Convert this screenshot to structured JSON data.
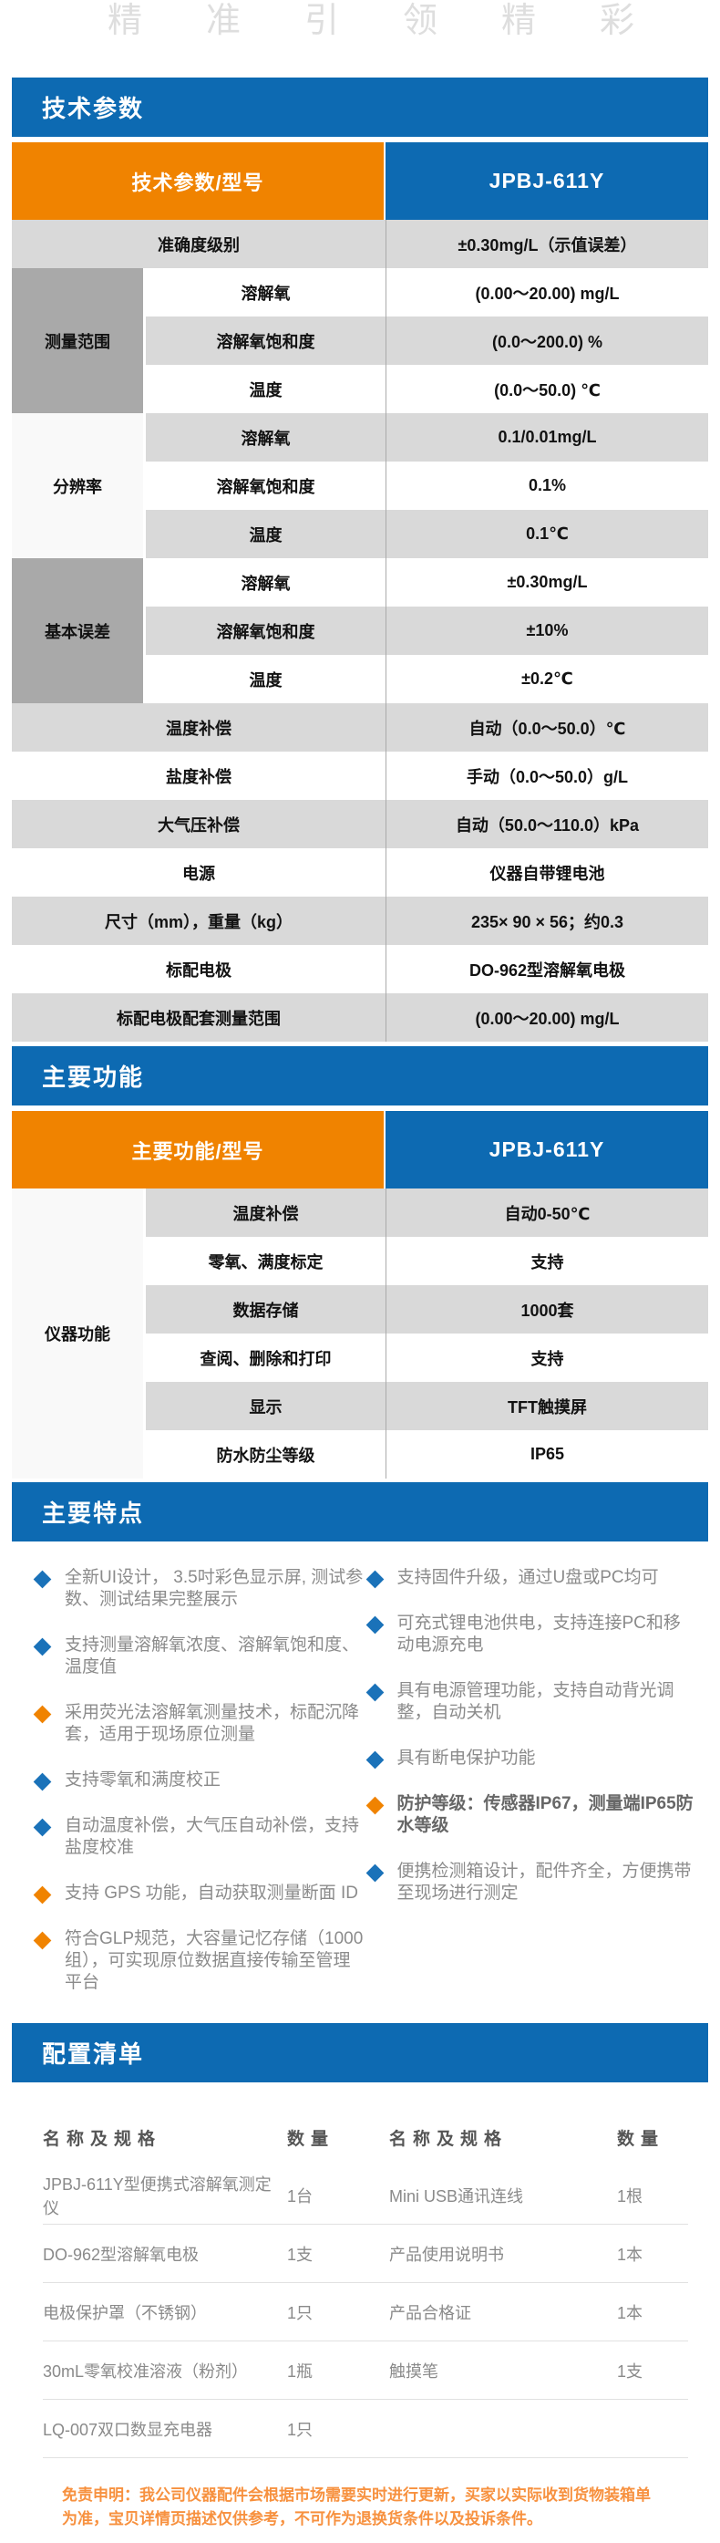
{
  "watermark": "精准引领精彩",
  "colors": {
    "accent_blue": "#0d6ab2",
    "accent_orange": "#f08300",
    "row_gray": "#d9d9d9",
    "group_dark_gray": "#a9a9a9",
    "disclaimer_orange": "#f7913f"
  },
  "tech": {
    "title": "技术参数",
    "header_left": "技术参数/型号",
    "header_right": "JPBJ-611Y",
    "rows": [
      {
        "full": true,
        "label": "准确度级别",
        "value": "±0.30mg/L（示值误差）",
        "shade": "gray"
      },
      {
        "group": {
          "label": "测量范围",
          "span": 3,
          "shade": "dark"
        },
        "label": "溶解氧",
        "value": "(0.00～20.00) mg/L",
        "shade": "white"
      },
      {
        "label": "溶解氧饱和度",
        "value": "(0.0～200.0) %",
        "shade": "gray"
      },
      {
        "label": "温度",
        "value": "(0.0～50.0) ℃",
        "shade": "white"
      },
      {
        "group": {
          "label": "分辨率",
          "span": 3,
          "shade": "light"
        },
        "label": "溶解氧",
        "value": "0.1/0.01mg/L",
        "shade": "gray"
      },
      {
        "label": "溶解氧饱和度",
        "value": "0.1%",
        "shade": "white"
      },
      {
        "label": "温度",
        "value": "0.1℃",
        "shade": "gray"
      },
      {
        "group": {
          "label": "基本误差",
          "span": 3,
          "shade": "dark"
        },
        "label": "溶解氧",
        "value": "±0.30mg/L",
        "shade": "white"
      },
      {
        "label": "溶解氧饱和度",
        "value": "±10%",
        "shade": "gray"
      },
      {
        "label": "温度",
        "value": "±0.2℃",
        "shade": "white"
      },
      {
        "full": true,
        "label": "温度补偿",
        "value": "自动（0.0～50.0）℃",
        "shade": "gray"
      },
      {
        "full": true,
        "label": "盐度补偿",
        "value": "手动（0.0～50.0）g/L",
        "shade": "white"
      },
      {
        "full": true,
        "label": "大气压补偿",
        "value": "自动（50.0～110.0）kPa",
        "shade": "gray"
      },
      {
        "full": true,
        "label": "电源",
        "value": "仪器自带锂电池",
        "shade": "white"
      },
      {
        "full": true,
        "label": "尺寸（mm），重量（kg）",
        "value": "235× 90 × 56；约0.3",
        "shade": "gray"
      },
      {
        "full": true,
        "label": "标配电极",
        "value": "DO-962型溶解氧电极",
        "shade": "white"
      },
      {
        "full": true,
        "label": "标配电极配套测量范围",
        "value": "(0.00～20.00) mg/L",
        "shade": "gray"
      }
    ]
  },
  "functions": {
    "title": "主要功能",
    "header_left": "主要功能/型号",
    "header_right": "JPBJ-611Y",
    "rows": [
      {
        "group": {
          "label": "仪器功能",
          "span": 6,
          "shade": "light"
        },
        "label": "温度补偿",
        "value": "自动0-50℃",
        "shade": "gray"
      },
      {
        "label": "零氧、满度标定",
        "value": "支持",
        "shade": "white"
      },
      {
        "label": "数据存储",
        "value": "1000套",
        "shade": "gray"
      },
      {
        "label": "查阅、删除和打印",
        "value": "支持",
        "shade": "white"
      },
      {
        "label": "显示",
        "value": "TFT触摸屏",
        "shade": "gray"
      },
      {
        "label": "防水防尘等级",
        "value": "IP65",
        "shade": "white"
      }
    ]
  },
  "features": {
    "title": "主要特点",
    "left": [
      {
        "bullet": "blue",
        "text": "全新UI设计， 3.5吋彩色显示屏, 测试参数、测试结果完整展示"
      },
      {
        "bullet": "blue",
        "text": "支持测量溶解氧浓度、溶解氧饱和度、温度值"
      },
      {
        "bullet": "orange",
        "text": "采用荧光法溶解氧测量技术，标配沉降套，适用于现场原位测量"
      },
      {
        "bullet": "blue",
        "text": "支持零氧和满度校正"
      },
      {
        "bullet": "blue",
        "text": "自动温度补偿，大气压自动补偿，支持盐度校准"
      },
      {
        "bullet": "orange",
        "text": "支持 GPS 功能，自动获取测量断面 ID"
      },
      {
        "bullet": "orange",
        "text": "符合GLP规范，大容量记忆存储（1000组），可实现原位数据直接传输至管理平台"
      }
    ],
    "right": [
      {
        "bullet": "blue",
        "text": "支持固件升级，通过U盘或PC均可"
      },
      {
        "bullet": "blue",
        "text": "可充式锂电池供电，支持连接PC和移动电源充电"
      },
      {
        "bullet": "blue",
        "text": "具有电源管理功能，支持自动背光调整，自动关机"
      },
      {
        "bullet": "blue",
        "text": "具有断电保护功能"
      },
      {
        "bullet": "orange",
        "strong": true,
        "text": "防护等级：传感器IP67，测量端IP65防水等级"
      },
      {
        "bullet": "blue",
        "text": "便携检测箱设计，配件齐全，方便携带至现场进行测定"
      }
    ]
  },
  "config": {
    "title": "配置清单",
    "headers": [
      "名称及规格",
      "数量",
      "名称及规格",
      "数量"
    ],
    "rows": [
      [
        "JPBJ-611Y型便携式溶解氧测定仪",
        "1台",
        "Mini USB通讯连线",
        "1根"
      ],
      [
        "DO-962型溶解氧电极",
        "1支",
        "产品使用说明书",
        "1本"
      ],
      [
        "电极保护罩（不锈钢）",
        "1只",
        "产品合格证",
        "1本"
      ],
      [
        "30mL零氧校准溶液（粉剂）",
        "1瓶",
        "触摸笔",
        "1支"
      ],
      [
        "LQ-007双口数显充电器",
        "1只",
        "",
        ""
      ]
    ],
    "disclaimer": "免责申明：我公司仪器配件会根据市场需要实时进行更新，买家以实际收到货物装箱单为准，宝贝详情页描述仅供参考，不可作为退换货条件以及投诉条件。"
  }
}
